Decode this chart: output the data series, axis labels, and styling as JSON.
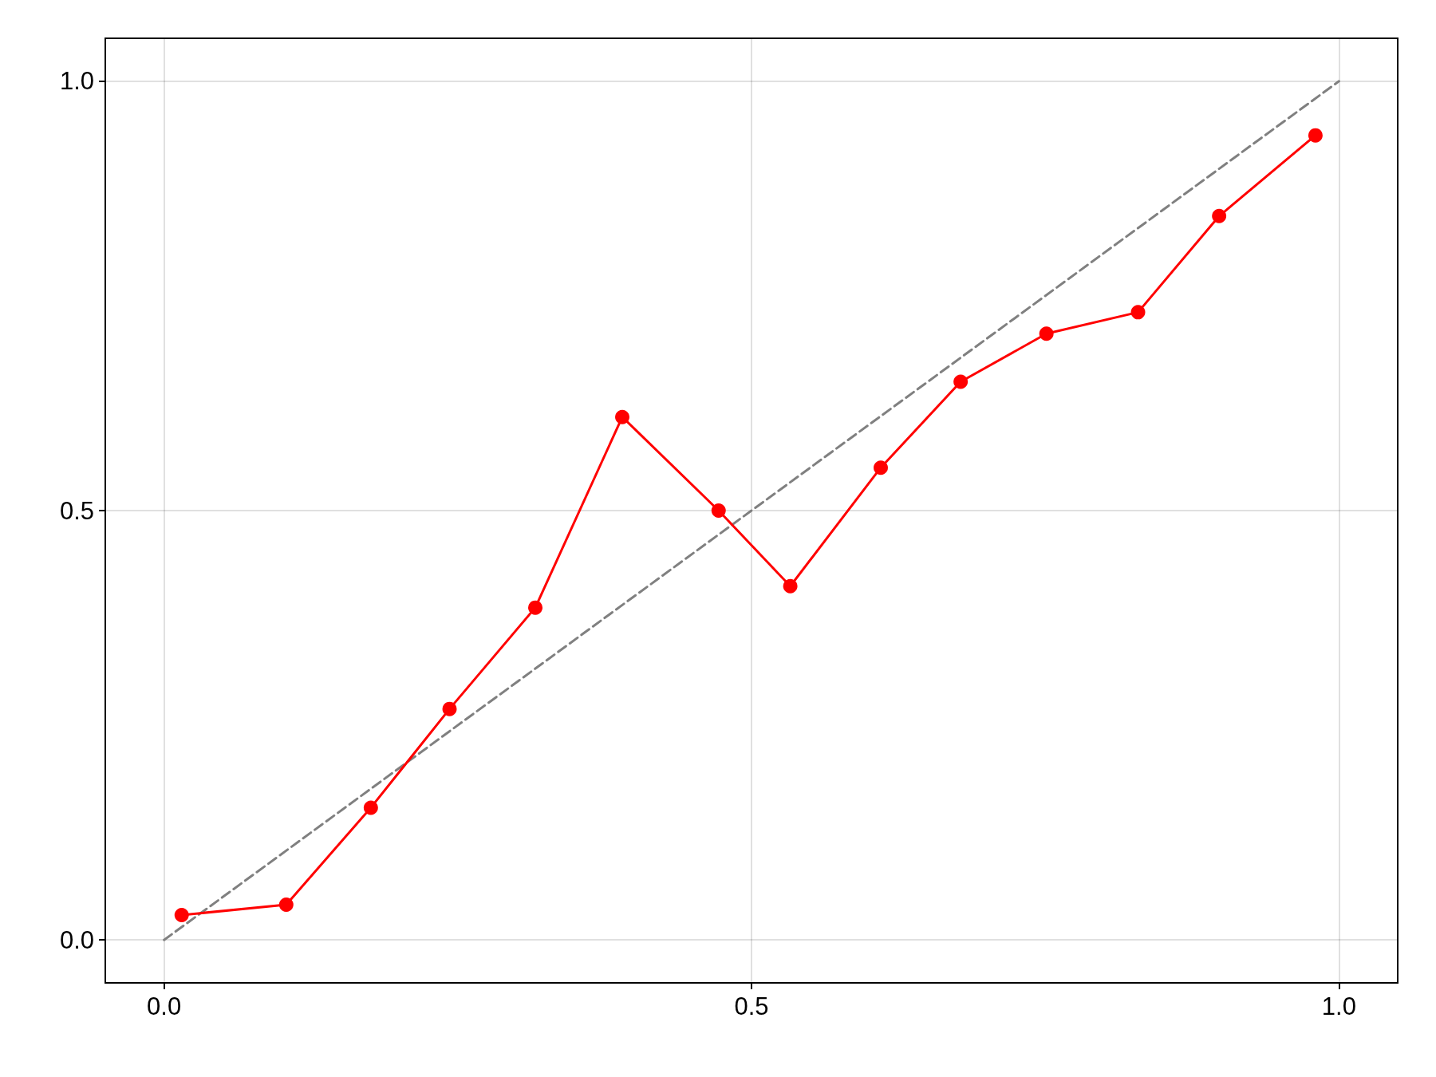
{
  "chart_data": {
    "type": "line",
    "xlim": [
      -0.05,
      1.05
    ],
    "ylim": [
      -0.05,
      1.05
    ],
    "xticks": [
      {
        "value": 0,
        "label": "0.0"
      },
      0.5,
      {
        "value": 1,
        "label": "1.0"
      }
    ],
    "yticks": [
      {
        "value": 0,
        "label": "0.0"
      },
      0.5,
      {
        "value": 1,
        "label": "1.0"
      }
    ],
    "grid": true,
    "series": [
      {
        "color": "#808080",
        "line_style": "dashed",
        "marker": "none",
        "x": [
          0,
          1
        ],
        "values": [
          0,
          1
        ]
      },
      {
        "color": "#ff0000",
        "line_style": "solid",
        "marker": "circle",
        "x": [
          0.015,
          0.104,
          0.176,
          0.243,
          0.316,
          0.39,
          0.472,
          0.533,
          0.61,
          0.678,
          0.751,
          0.829,
          0.898,
          0.98
        ],
        "values": [
          0.029,
          0.041,
          0.154,
          0.269,
          0.387,
          0.609,
          0.5,
          0.412,
          0.55,
          0.65,
          0.706,
          0.731,
          0.843,
          0.937
        ]
      }
    ]
  }
}
